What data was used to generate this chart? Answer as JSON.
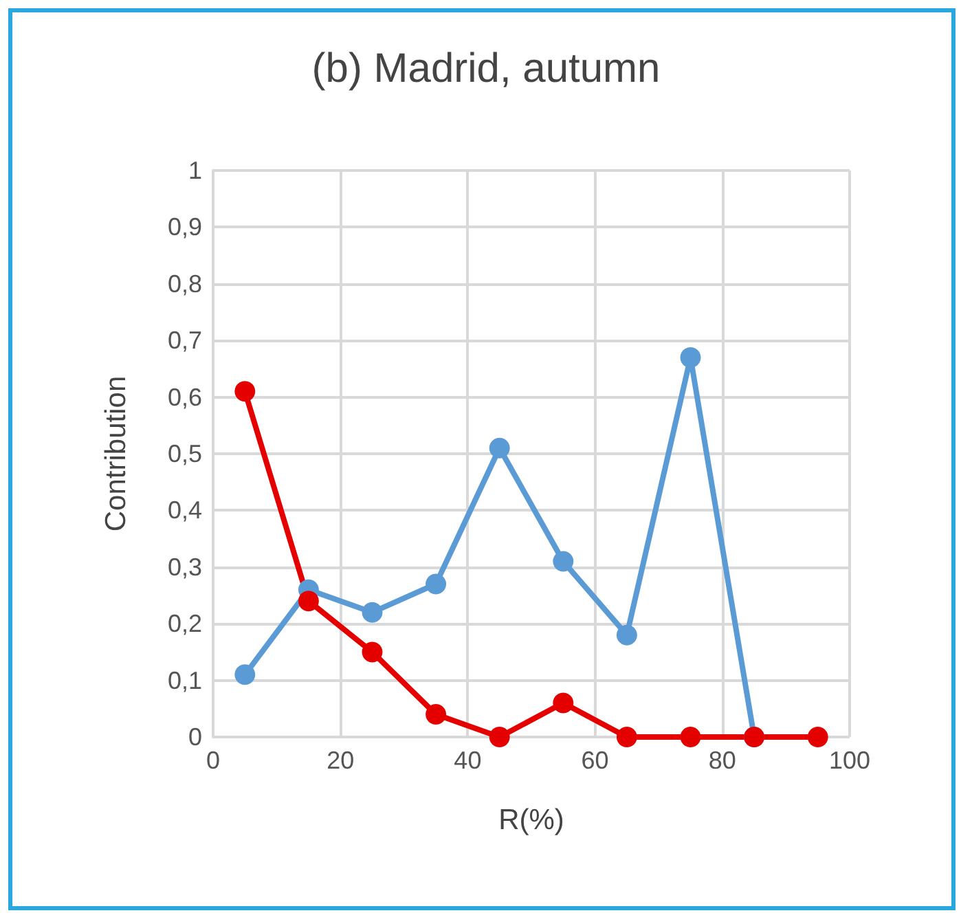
{
  "chart_data": {
    "type": "line",
    "title": "(b) Madrid, autumn",
    "xlabel": "R(%)",
    "ylabel": "Contribution",
    "xlim": [
      0,
      100
    ],
    "xticks": [
      0,
      20,
      40,
      60,
      80,
      100
    ],
    "ylim": [
      0,
      1
    ],
    "yticks": [
      {
        "value": 0,
        "label": "0"
      },
      {
        "value": 0.1,
        "label": "0,1"
      },
      {
        "value": 0.2,
        "label": "0,2"
      },
      {
        "value": 0.3,
        "label": "0,3"
      },
      {
        "value": 0.4,
        "label": "0,4"
      },
      {
        "value": 0.5,
        "label": "0,5"
      },
      {
        "value": 0.6,
        "label": "0,6"
      },
      {
        "value": 0.7,
        "label": "0,7"
      },
      {
        "value": 0.8,
        "label": "0,8"
      },
      {
        "value": 0.9,
        "label": "0,9"
      },
      {
        "value": 1,
        "label": "1"
      }
    ],
    "grid": true,
    "marker": "circle",
    "series": [
      {
        "color": "#5b9bd5",
        "x": [
          5,
          15,
          25,
          35,
          45,
          55,
          65,
          75,
          85
        ],
        "values": [
          0.11,
          0.26,
          0.22,
          0.27,
          0.51,
          0.31,
          0.18,
          0.67,
          0
        ]
      },
      {
        "color": "#e50000",
        "x": [
          5,
          15,
          25,
          35,
          45,
          55,
          65,
          75,
          85,
          95
        ],
        "values": [
          0.61,
          0.24,
          0.15,
          0.04,
          0,
          0.06,
          0,
          0,
          0,
          0
        ]
      }
    ]
  }
}
